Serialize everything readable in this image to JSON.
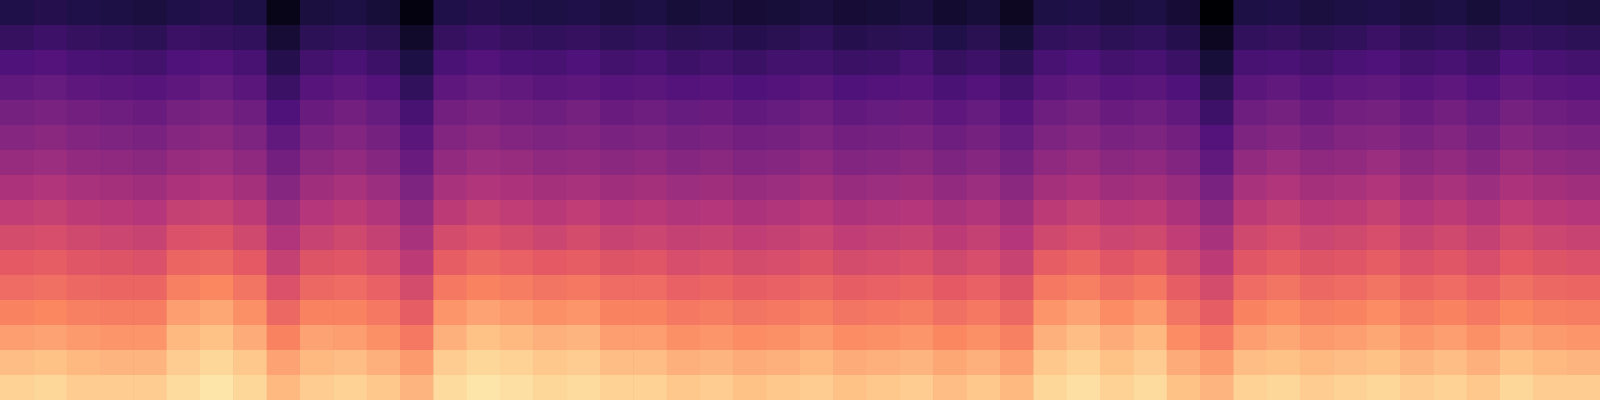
{
  "chart_data": {
    "type": "heatmap",
    "tick_labels": false,
    "xlim": [
      0,
      48
    ],
    "ylim": [
      0,
      16
    ],
    "zlim": [
      0,
      100
    ],
    "cells": [
      [
        14,
        15,
        14,
        13,
        12,
        14,
        15,
        13,
        4,
        12,
        13,
        11,
        2,
        14,
        15,
        14,
        13,
        14,
        12,
        13,
        11,
        12,
        10,
        11,
        12,
        10,
        11,
        12,
        9,
        11,
        6,
        13,
        14,
        12,
        13,
        10,
        0,
        13,
        14,
        12,
        13,
        14,
        12,
        13,
        11,
        14,
        13,
        12
      ],
      [
        19,
        21,
        19,
        18,
        17,
        20,
        19,
        18,
        10,
        17,
        18,
        16,
        8,
        19,
        21,
        19,
        18,
        19,
        17,
        18,
        16,
        17,
        15,
        16,
        18,
        15,
        16,
        17,
        14,
        16,
        11,
        18,
        19,
        17,
        18,
        15,
        6,
        18,
        19,
        17,
        18,
        20,
        17,
        18,
        16,
        19,
        18,
        17
      ],
      [
        25,
        26,
        24,
        23,
        22,
        25,
        26,
        23,
        15,
        22,
        24,
        21,
        13,
        24,
        26,
        24,
        23,
        25,
        22,
        23,
        21,
        22,
        20,
        22,
        22,
        20,
        21,
        23,
        19,
        21,
        17,
        23,
        25,
        22,
        23,
        20,
        11,
        23,
        24,
        22,
        24,
        25,
        22,
        23,
        21,
        25,
        23,
        22
      ],
      [
        30,
        31,
        29,
        28,
        27,
        29,
        31,
        28,
        20,
        27,
        29,
        26,
        18,
        29,
        31,
        30,
        28,
        29,
        27,
        28,
        26,
        27,
        25,
        26,
        28,
        25,
        26,
        27,
        24,
        26,
        22,
        28,
        30,
        27,
        28,
        25,
        16,
        28,
        30,
        27,
        29,
        30,
        27,
        29,
        26,
        30,
        28,
        27
      ],
      [
        35,
        36,
        34,
        33,
        32,
        35,
        36,
        33,
        25,
        32,
        34,
        31,
        23,
        34,
        36,
        34,
        33,
        35,
        32,
        33,
        31,
        32,
        30,
        31,
        33,
        30,
        31,
        32,
        29,
        31,
        27,
        33,
        35,
        32,
        33,
        30,
        21,
        33,
        35,
        32,
        34,
        35,
        32,
        34,
        31,
        35,
        33,
        32
      ],
      [
        39,
        40,
        38,
        37,
        36,
        39,
        40,
        37,
        30,
        36,
        38,
        35,
        28,
        38,
        40,
        38,
        37,
        38,
        36,
        37,
        35,
        36,
        34,
        35,
        37,
        34,
        35,
        36,
        33,
        35,
        31,
        37,
        39,
        36,
        37,
        34,
        26,
        37,
        39,
        36,
        38,
        39,
        36,
        38,
        35,
        39,
        37,
        36
      ],
      [
        43,
        44,
        42,
        41,
        40,
        43,
        44,
        41,
        34,
        40,
        42,
        39,
        32,
        42,
        44,
        43,
        41,
        42,
        40,
        41,
        39,
        40,
        38,
        39,
        41,
        38,
        39,
        40,
        37,
        39,
        35,
        41,
        43,
        40,
        41,
        38,
        30,
        42,
        44,
        41,
        42,
        44,
        40,
        42,
        39,
        43,
        41,
        40
      ],
      [
        48,
        49,
        47,
        46,
        45,
        48,
        49,
        46,
        39,
        45,
        47,
        44,
        37,
        47,
        49,
        48,
        46,
        47,
        45,
        46,
        44,
        45,
        43,
        44,
        46,
        43,
        44,
        45,
        42,
        44,
        40,
        46,
        48,
        45,
        46,
        43,
        36,
        47,
        49,
        46,
        47,
        49,
        45,
        47,
        44,
        48,
        46,
        45
      ],
      [
        53,
        54,
        52,
        51,
        50,
        54,
        55,
        52,
        44,
        50,
        52,
        49,
        42,
        52,
        55,
        53,
        51,
        53,
        50,
        51,
        49,
        50,
        48,
        49,
        51,
        48,
        49,
        50,
        47,
        49,
        45,
        52,
        54,
        51,
        52,
        48,
        41,
        52,
        54,
        51,
        52,
        54,
        50,
        52,
        49,
        53,
        51,
        50
      ],
      [
        58,
        59,
        57,
        56,
        55,
        60,
        61,
        57,
        49,
        55,
        57,
        54,
        47,
        58,
        60,
        58,
        56,
        58,
        55,
        56,
        54,
        55,
        53,
        54,
        56,
        53,
        54,
        55,
        52,
        54,
        50,
        57,
        59,
        56,
        57,
        53,
        47,
        57,
        59,
        56,
        57,
        59,
        55,
        57,
        54,
        58,
        56,
        55
      ],
      [
        63,
        64,
        62,
        61,
        60,
        66,
        67,
        63,
        54,
        61,
        62,
        59,
        52,
        64,
        67,
        65,
        63,
        64,
        61,
        62,
        59,
        60,
        58,
        59,
        61,
        58,
        59,
        60,
        57,
        59,
        55,
        64,
        66,
        62,
        64,
        58,
        52,
        62,
        64,
        61,
        62,
        64,
        60,
        62,
        59,
        63,
        61,
        60
      ],
      [
        68,
        69,
        67,
        66,
        66,
        73,
        75,
        70,
        60,
        67,
        68,
        65,
        58,
        71,
        74,
        72,
        70,
        71,
        68,
        68,
        65,
        66,
        64,
        65,
        67,
        64,
        65,
        66,
        63,
        65,
        61,
        71,
        73,
        69,
        71,
        64,
        58,
        68,
        70,
        67,
        68,
        70,
        66,
        68,
        65,
        69,
        67,
        66
      ],
      [
        74,
        75,
        73,
        72,
        72,
        80,
        82,
        77,
        67,
        74,
        74,
        71,
        64,
        78,
        81,
        79,
        77,
        78,
        74,
        74,
        71,
        72,
        70,
        71,
        73,
        70,
        71,
        72,
        69,
        71,
        67,
        78,
        81,
        76,
        79,
        70,
        64,
        74,
        76,
        73,
        74,
        76,
        72,
        74,
        71,
        75,
        73,
        72
      ],
      [
        80,
        81,
        79,
        78,
        78,
        86,
        88,
        83,
        74,
        81,
        80,
        77,
        71,
        84,
        88,
        86,
        84,
        85,
        80,
        80,
        77,
        78,
        76,
        77,
        79,
        76,
        77,
        78,
        75,
        77,
        73,
        84,
        87,
        83,
        86,
        76,
        71,
        80,
        82,
        79,
        80,
        82,
        78,
        80,
        77,
        81,
        79,
        78
      ],
      [
        87,
        88,
        86,
        85,
        85,
        90,
        92,
        89,
        81,
        86,
        87,
        84,
        79,
        90,
        92,
        91,
        89,
        90,
        87,
        87,
        84,
        85,
        83,
        84,
        86,
        83,
        84,
        85,
        82,
        84,
        80,
        89,
        91,
        88,
        90,
        83,
        79,
        87,
        88,
        86,
        87,
        88,
        85,
        87,
        84,
        88,
        86,
        85
      ],
      [
        91,
        92,
        90,
        90,
        90,
        93,
        95,
        92,
        86,
        90,
        91,
        89,
        85,
        93,
        95,
        94,
        92,
        93,
        91,
        91,
        89,
        90,
        88,
        89,
        90,
        88,
        89,
        90,
        87,
        89,
        86,
        92,
        94,
        91,
        93,
        88,
        85,
        91,
        92,
        90,
        91,
        92,
        90,
        91,
        89,
        92,
        90,
        90
      ]
    ]
  }
}
